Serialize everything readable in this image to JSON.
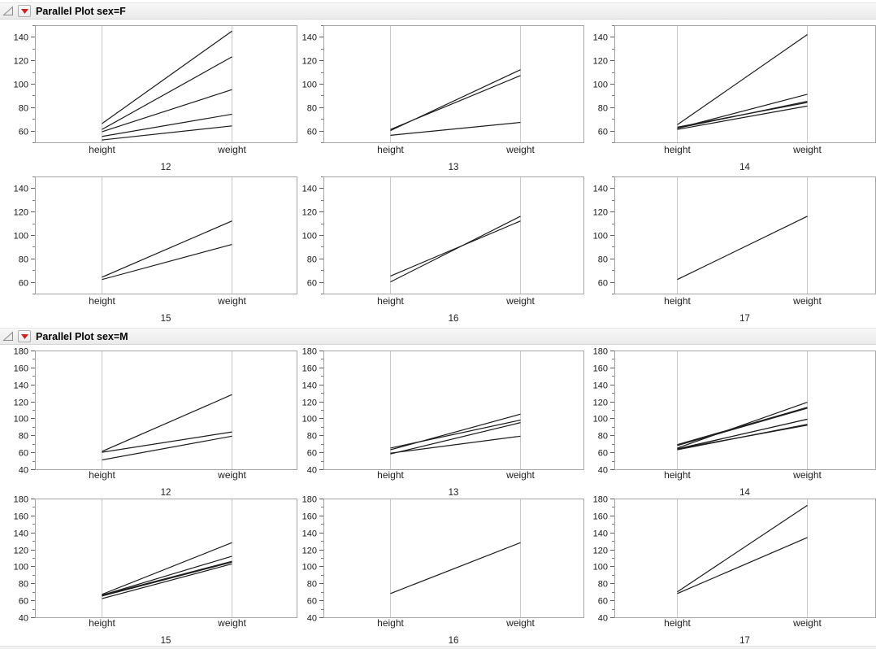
{
  "app": "JMP report - Parallel Plot grouped by sex, paneled by age",
  "icons": {
    "section_toggle": "open-disclosure-triangle-icon",
    "section_menu": "red-triangle-dropdown-icon"
  },
  "colors": {
    "menu_red": "#cb221d",
    "header_bg": "#efefef",
    "frame_gray": "#a6a6a6",
    "axis_gray": "#c9c9c9",
    "line_black": "#1c1c1c"
  },
  "chart_data": [
    {
      "type": "line",
      "subtype": "parallel-coordinates",
      "title": "Parallel Plot sex=F",
      "categories": [
        "height",
        "weight"
      ],
      "panel_variable": "age",
      "ylim": [
        50,
        150
      ],
      "yticks": [
        60,
        80,
        100,
        120,
        140
      ],
      "minor_tick_step": 10,
      "grid": false,
      "legend": "none",
      "panels": [
        {
          "age": "12",
          "lines": [
            [
              66,
              145
            ],
            [
              61,
              123
            ],
            [
              59,
              95
            ],
            [
              55,
              74
            ],
            [
              52,
              64
            ]
          ]
        },
        {
          "age": "13",
          "lines": [
            [
              60,
              112
            ],
            [
              61,
              107
            ],
            [
              56,
              67
            ]
          ]
        },
        {
          "age": "14",
          "lines": [
            [
              65,
              142
            ],
            [
              62,
              91
            ],
            [
              62,
              85
            ],
            [
              63,
              84
            ],
            [
              61,
              81
            ]
          ]
        },
        {
          "age": "15",
          "lines": [
            [
              64,
              112
            ],
            [
              62,
              92
            ]
          ]
        },
        {
          "age": "16",
          "lines": [
            [
              60,
              116
            ],
            [
              65,
              112
            ]
          ]
        },
        {
          "age": "17",
          "lines": [
            [
              62,
              116
            ]
          ]
        }
      ]
    },
    {
      "type": "line",
      "subtype": "parallel-coordinates",
      "title": "Parallel Plot sex=M",
      "categories": [
        "height",
        "weight"
      ],
      "panel_variable": "age",
      "ylim": [
        40,
        180
      ],
      "yticks": [
        40,
        60,
        80,
        100,
        120,
        140,
        160,
        180
      ],
      "minor_tick_step": 10,
      "grid": false,
      "legend": "none",
      "panels": [
        {
          "age": "12",
          "lines": [
            [
              61,
              128
            ],
            [
              60,
              84
            ],
            [
              51,
              79
            ]
          ]
        },
        {
          "age": "13",
          "lines": [
            [
              63,
              105
            ],
            [
              65,
              98
            ],
            [
              58,
              95
            ],
            [
              59,
              79
            ]
          ]
        },
        {
          "age": "14",
          "lines": [
            [
              65,
              119
            ],
            [
              69,
              113
            ],
            [
              68,
              112
            ],
            [
              64,
              99
            ],
            [
              64,
              99
            ],
            [
              63,
              93
            ],
            [
              64,
              92
            ]
          ]
        },
        {
          "age": "15",
          "lines": [
            [
              67,
              128
            ],
            [
              66,
              112
            ],
            [
              66,
              106
            ],
            [
              65,
              105
            ],
            [
              62,
              103
            ]
          ]
        },
        {
          "age": "16",
          "lines": [
            [
              68,
              128
            ]
          ]
        },
        {
          "age": "17",
          "lines": [
            [
              70,
              172
            ],
            [
              68,
              134
            ]
          ]
        }
      ]
    }
  ]
}
